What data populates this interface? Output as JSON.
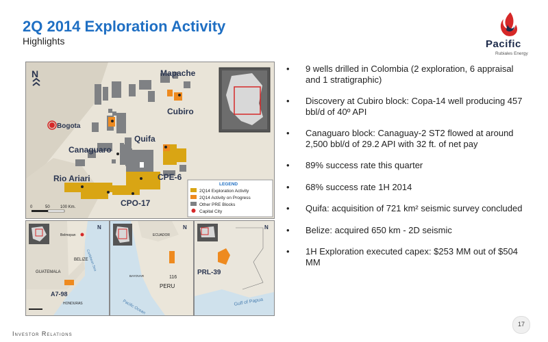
{
  "header": {
    "title": "2Q 2014 Exploration Activity",
    "subtitle": "Highlights"
  },
  "logo": {
    "name": "Pacific",
    "tagline": "Rubiales Energy"
  },
  "map": {
    "labels": {
      "north": "N",
      "mapache": "Mapache",
      "cubiro": "Cubiro",
      "bogota": "Bogota",
      "canaguaro": "Canaguaro",
      "quifa": "Quifa",
      "rio_ariari": "Rio Ariari",
      "cpe6": "CPE-6",
      "cpo17": "CPO-17",
      "scale_0": "0",
      "scale_50": "50",
      "scale_100": "100 Km."
    },
    "legend": {
      "title": "LEGEND",
      "items": [
        "2Q14 Exploration Activity",
        "2Q14 Activity on Progress",
        "Other PRE Blocks",
        "Capital City"
      ]
    },
    "colors": {
      "exploration": "#d9a514",
      "progress": "#ee8a1f",
      "other": "#7f8184",
      "capital": "#d62828"
    }
  },
  "maps_small": {
    "belize": {
      "belmopan": "Belmopan",
      "belize": "BELIZE",
      "guatemala": "GUATEMALA",
      "honduras": "HONDURAS",
      "caribbean": "Caribbean Sea",
      "block": "A7-98",
      "north": "N"
    },
    "peru": {
      "ecuador": "ECUADOR",
      "peru": "PERU",
      "block": "116",
      "pacific": "Pacific Ocean",
      "north": "N",
      "bayovar": "BAYOVAR"
    },
    "png": {
      "block": "PRL-39",
      "gulf": "Gulf of Papua",
      "north": "N"
    }
  },
  "bullets": [
    "9 wells drilled in Colombia (2 exploration, 6 appraisal and 1 stratigraphic)",
    "Discovery at Cubiro block: Copa-14 well producing 457 bbl/d of 40º API",
    "Canaguaro block: Canaguay-2 ST2 flowed at around 2,500 bbl/d of 29.2 API with 32 ft. of net pay",
    "89% success rate this quarter",
    "68% success rate 1H 2014",
    "Quifa: acquisition of 721 km² seismic survey concluded",
    "Belize: acquired 650 km - 2D seismic",
    "1H Exploration executed capex: $253 MM out of $504 MM"
  ],
  "footer": {
    "text": "Investor Relations",
    "page": "17"
  }
}
